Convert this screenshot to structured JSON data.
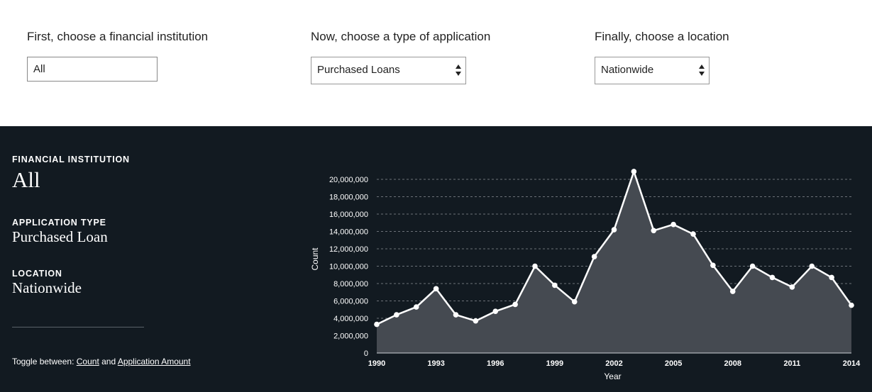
{
  "controls": {
    "institution": {
      "label": "First, choose a financial institution",
      "value": "All"
    },
    "application": {
      "label": "Now, choose a type of application",
      "value": "Purchased Loans"
    },
    "location": {
      "label": "Finally, choose a location",
      "value": "Nationwide"
    }
  },
  "summary": {
    "institution_label": "FINANCIAL INSTITUTION",
    "institution_value": "All",
    "application_label": "APPLICATION TYPE",
    "application_value": "Purchased Loan",
    "location_label": "LOCATION",
    "location_value": "Nationwide"
  },
  "toggle": {
    "prefix": "Toggle between:",
    "option_count": "Count",
    "conjunction": "and",
    "option_amount": "Application Amount"
  },
  "colors": {
    "panel_background": "#121a21",
    "area_fill": "#454a51",
    "line": "#ffffff",
    "grid": "#8a8f95"
  },
  "chart_data": {
    "type": "area",
    "xlabel": "Year",
    "ylabel": "Count",
    "x": [
      1990,
      1991,
      1992,
      1993,
      1994,
      1995,
      1996,
      1997,
      1998,
      1999,
      2000,
      2001,
      2002,
      2003,
      2004,
      2005,
      2006,
      2007,
      2008,
      2009,
      2010,
      2011,
      2012,
      2013,
      2014
    ],
    "values": [
      3300000,
      4400000,
      5300000,
      7400000,
      4400000,
      3700000,
      4800000,
      5600000,
      10000000,
      7800000,
      5900000,
      11100000,
      14200000,
      20900000,
      14100000,
      14800000,
      13700000,
      10100000,
      7100000,
      10000000,
      8700000,
      7600000,
      10000000,
      8700000,
      5500000
    ],
    "x_ticks": [
      "1990",
      "1993",
      "1996",
      "1999",
      "2002",
      "2005",
      "2008",
      "2011",
      "2014"
    ],
    "y_ticks": [
      "0",
      "2,000,000",
      "4,000,000",
      "6,000,000",
      "8,000,000",
      "10,000,000",
      "12,000,000",
      "14,000,000",
      "16,000,000",
      "18,000,000",
      "20,000,000"
    ],
    "xlim": [
      1990,
      2014
    ],
    "ylim": [
      0,
      20000000
    ],
    "grid": true
  }
}
